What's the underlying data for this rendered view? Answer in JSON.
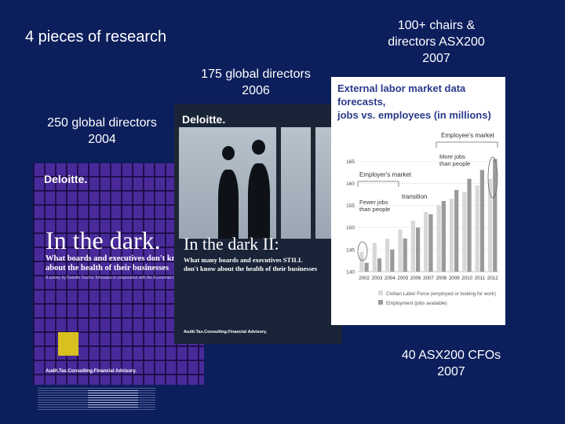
{
  "slide": {
    "title": "4 pieces of research",
    "captions": {
      "r2004": "250 global directors\n2004",
      "r2006": "175 global directors\n2006",
      "r2007a": "100+ chairs &\ndirectors ASX200\n2007",
      "r2007b": "40 ASX200 CFOs\n2007"
    }
  },
  "cover2004": {
    "logo": "Deloitte.",
    "title": "In the dark.",
    "subtitle": "What boards and executives don't know\nabout the health of their businesses",
    "note": "A survey by Deloitte Touche Tohmatsu in cooperation with the Economist Intelligence Unit",
    "footer": "Audit.Tax.Consulting.Financial Advisory."
  },
  "cover2006": {
    "logo": "Deloitte.",
    "title": "In the dark II:",
    "subtitle": "What many boards and executives STILL\ndon't know about the health of their businesses",
    "footer": "Audit.Tax.Consulting.Financial Advisory."
  },
  "cover2007": {
    "title": "External labor market data forecasts,\njobs vs. employees (in millions)",
    "annotations": {
      "employee_market": "Employee's market",
      "employer_market": "Employer's market",
      "transition": "transition",
      "more_jobs": "More jobs\nthan people",
      "fewer_jobs": "Fewer jobs\nthan people"
    },
    "legend": {
      "labor": "Civilian Labor Force (employed or looking for work)",
      "employment": "Employment (jobs available)"
    },
    "colors": {
      "labor": "#d8d8d8",
      "employment": "#9a9a9a"
    }
  },
  "chart_data": {
    "type": "bar",
    "title": "External labor market data forecasts,\njobs vs. employees (in millions)",
    "categories": [
      "2002",
      "2003",
      "2004",
      "2005",
      "2006",
      "2007",
      "2008",
      "2009",
      "2010",
      "2011",
      "2012"
    ],
    "yticks": [
      140,
      145,
      150,
      155,
      160,
      165
    ],
    "ylim": [
      140,
      167
    ],
    "series": [
      {
        "name": "Civilian Labor Force (employed or looking for work)",
        "values": [
          144.5,
          146.5,
          147.5,
          149.5,
          151.5,
          153.5,
          155.0,
          156.5,
          158.0,
          159.5,
          161.0
        ]
      },
      {
        "name": "Employment (jobs available)",
        "values": [
          142.0,
          143.0,
          145.0,
          147.5,
          150.0,
          153.0,
          156.0,
          158.5,
          161.0,
          163.0,
          165.5
        ]
      }
    ],
    "legend_position": "bottom"
  }
}
